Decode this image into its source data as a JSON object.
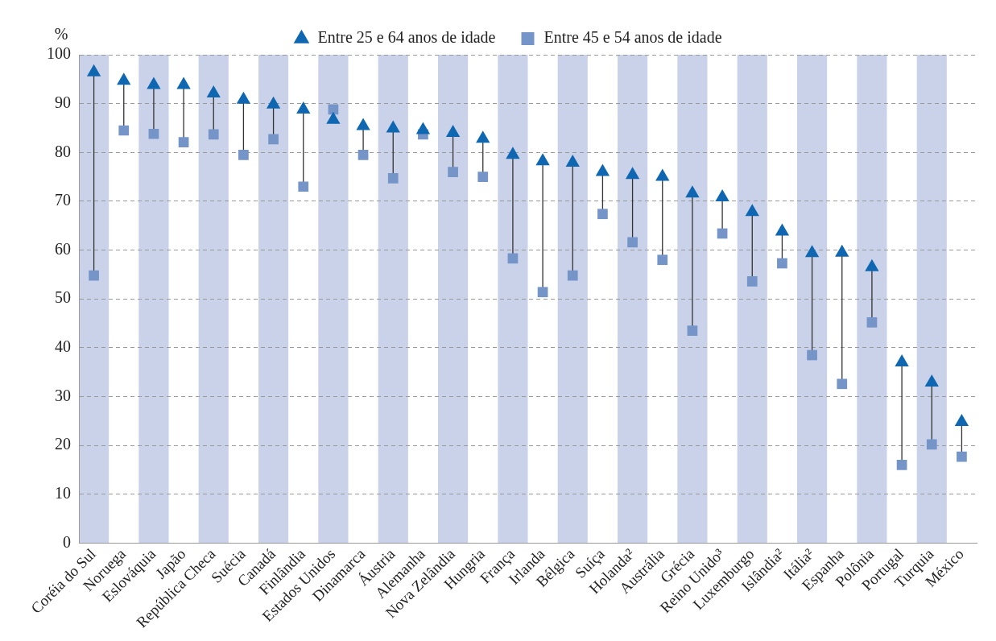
{
  "chart_data": {
    "type": "scatter",
    "ylabel": "%",
    "categories": [
      "Coréia do Sul",
      "Noruega",
      "Eslováquia",
      "Japão",
      "República Checa",
      "Suécia",
      "Canadá",
      "Finlândia",
      "Estados Unidos",
      "Dinamarca",
      "Áustria",
      "Alemanha",
      "Nova Zelândia",
      "Hungria",
      "França",
      "Irlanda",
      "Bélgica",
      "Suíça",
      "Holanda²",
      "Austrália",
      "Grécia",
      "Reino Unido³",
      "Luxemburgo",
      "Islândia²",
      "Itália²",
      "Espanha",
      "Polônia",
      "Portugal",
      "Turquia",
      "México"
    ],
    "series": [
      {
        "name": "Entre 25 e 64 anos de idade",
        "color": "#0f67b1",
        "marker": "triangle",
        "values": [
          96.4,
          94.7,
          93.8,
          93.8,
          92.1,
          90.8,
          89.8,
          88.8,
          86.7,
          85.4,
          84.9,
          84.6,
          84.0,
          82.8,
          79.5,
          78.2,
          77.9,
          76.0,
          75.4,
          75.0,
          71.6,
          70.8,
          67.8,
          63.8,
          59.4,
          59.5,
          56.5,
          37.0,
          32.9,
          24.8
        ]
      },
      {
        "name": "Entre 45 e 54 anos de idade",
        "color": "#7595c9",
        "marker": "square",
        "values": [
          54.8,
          84.5,
          83.8,
          82.1,
          83.7,
          79.5,
          82.7,
          73.0,
          88.8,
          79.5,
          74.7,
          83.7,
          76.0,
          75.0,
          58.3,
          51.4,
          54.8,
          67.4,
          61.6,
          58.0,
          43.5,
          63.4,
          53.6,
          57.3,
          38.5,
          32.6,
          45.2,
          16.0,
          20.2,
          17.7
        ]
      }
    ],
    "ylim": [
      0,
      100
    ],
    "yticks": [
      0,
      10,
      20,
      30,
      40,
      50,
      60,
      70,
      80,
      90,
      100
    ],
    "grid": "y",
    "legend": "top"
  }
}
